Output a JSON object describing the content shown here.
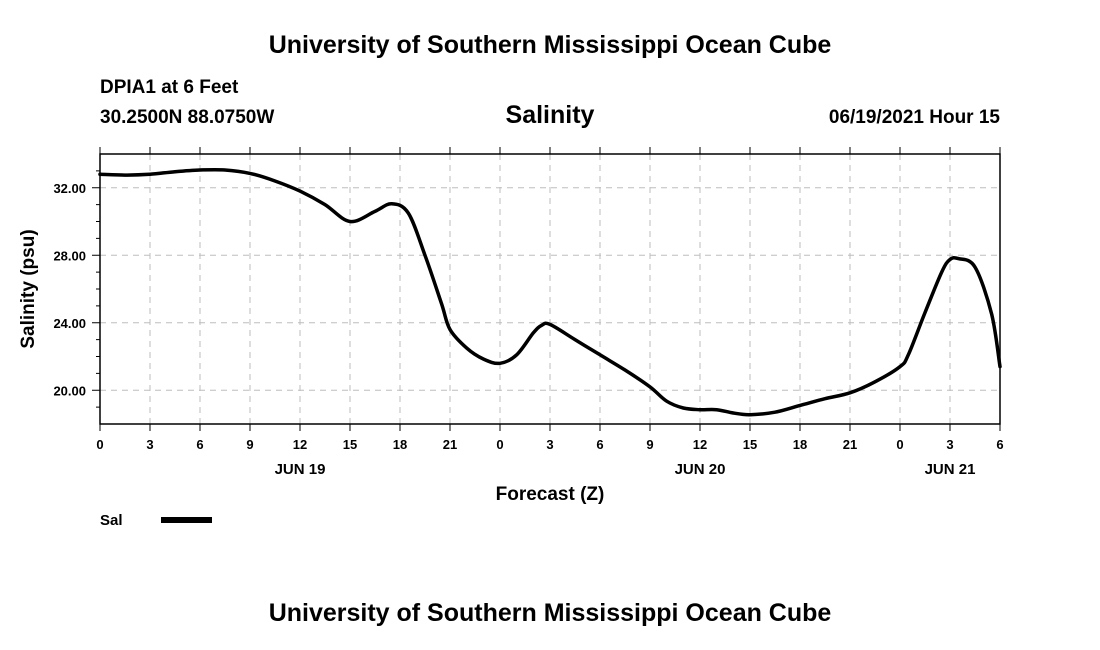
{
  "page": {
    "title_top": "University of Southern Mississippi Ocean Cube",
    "title_bottom": "University of Southern Mississippi Ocean Cube",
    "station_name": "DPIA1 at 6 Feet",
    "station_coords": "30.2500N  88.0750W",
    "parameter": "Salinity",
    "forecast_time": "06/19/2021 Hour 15"
  },
  "chart_data": {
    "type": "line",
    "title": "Salinity",
    "xlabel": "Forecast (Z)",
    "ylabel": "Salinity (psu)",
    "xlim": [
      0,
      54
    ],
    "ylim": [
      18,
      34
    ],
    "grid": true,
    "x_tick_values": [
      0,
      3,
      6,
      9,
      12,
      15,
      18,
      21,
      24,
      27,
      30,
      33,
      36,
      39,
      42,
      45,
      48,
      51,
      54
    ],
    "x_tick_labels": [
      "0",
      "3",
      "6",
      "9",
      "12",
      "15",
      "18",
      "21",
      "0",
      "3",
      "6",
      "9",
      "12",
      "15",
      "18",
      "21",
      "0",
      "3",
      "6"
    ],
    "y_tick_values": [
      20,
      24,
      28,
      32
    ],
    "y_tick_labels": [
      "20.00",
      "24.00",
      "28.00",
      "32.00"
    ],
    "y_minor_step": 1,
    "day_labels": [
      {
        "x": 12,
        "label": "JUN 19"
      },
      {
        "x": 36,
        "label": "JUN 20"
      },
      {
        "x": 51,
        "label": "JUN 21"
      }
    ],
    "legend": {
      "label": "Sal",
      "position": "bottom-left"
    },
    "series": [
      {
        "name": "Sal",
        "x": [
          0,
          1.5,
          3,
          4.5,
          6,
          7.5,
          9,
          10.5,
          12,
          13.5,
          15,
          16.5,
          17.5,
          18.5,
          19.5,
          20.5,
          21,
          22,
          23,
          24,
          25,
          26,
          26.5,
          27,
          28.5,
          30,
          31.5,
          33,
          34,
          35,
          36,
          37,
          38,
          39,
          40.5,
          42,
          43.5,
          45,
          46.5,
          48,
          48.5,
          49.5,
          50.5,
          51,
          51.5,
          52.5,
          53.5,
          54
        ],
        "y": [
          32.8,
          32.75,
          32.8,
          32.95,
          33.05,
          33.05,
          32.85,
          32.4,
          31.8,
          31.0,
          30.0,
          30.6,
          31.05,
          30.5,
          28.0,
          25.1,
          23.6,
          22.5,
          21.85,
          21.6,
          22.1,
          23.4,
          23.85,
          23.9,
          23.0,
          22.1,
          21.2,
          20.2,
          19.35,
          18.95,
          18.85,
          18.85,
          18.65,
          18.55,
          18.7,
          19.1,
          19.5,
          19.85,
          20.5,
          21.4,
          22.1,
          24.6,
          27.0,
          27.75,
          27.8,
          27.3,
          24.5,
          21.4
        ]
      }
    ]
  }
}
